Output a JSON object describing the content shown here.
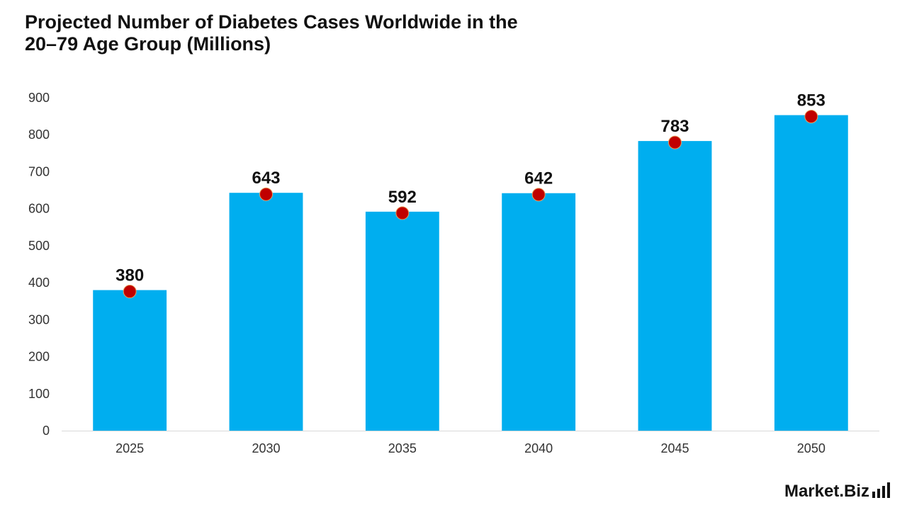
{
  "title_line1": "Projected Number of Diabetes Cases Worldwide in the",
  "title_line2": "20–79 Age Group (Millions)",
  "brand": {
    "text": "Market.Biz",
    "icon": "bar-chart-icon"
  },
  "colors": {
    "bar": "#00aeef",
    "marker": "#c00000",
    "marker_stroke": "#e8a060"
  },
  "chart_data": {
    "type": "bar",
    "title": "Projected Number of Diabetes Cases Worldwide in the 20–79 Age Group (Millions)",
    "categories": [
      "2025",
      "2030",
      "2035",
      "2040",
      "2045",
      "2050"
    ],
    "values": [
      380,
      643,
      592,
      642,
      783,
      853
    ],
    "data_labels": [
      "380",
      "643",
      "592",
      "642",
      "783",
      "853"
    ],
    "ylim": [
      0,
      900
    ],
    "yticks": [
      "0",
      "100",
      "200",
      "300",
      "400",
      "500",
      "600",
      "700",
      "800",
      "900"
    ],
    "xlabel": "",
    "ylabel": "",
    "grid": false,
    "legend": "none",
    "markers": "circle-on-bar-top"
  }
}
